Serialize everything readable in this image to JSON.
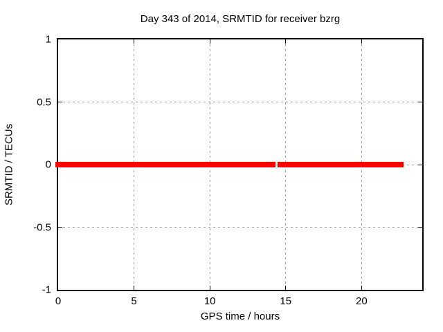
{
  "chart_data": {
    "type": "line",
    "title": "Day 343 of 2014, SRMTID for receiver bzrg",
    "xlabel": "GPS time / hours",
    "ylabel": "SRMTID / TECUs",
    "xlim": [
      0,
      24
    ],
    "ylim": [
      -1,
      1
    ],
    "xticks": [
      0,
      5,
      10,
      15,
      20
    ],
    "xtick_labels": [
      "0",
      "5",
      "10",
      "15",
      "20"
    ],
    "yticks": [
      1,
      0.5,
      0,
      -0.5,
      -1
    ],
    "ytick_labels": [
      "1",
      "0.5",
      "0",
      "-0.5",
      "-1"
    ],
    "grid": true,
    "grid_style": "dashed",
    "legend": "none",
    "series": [
      {
        "name": "SRMTID",
        "color": "#ff0000",
        "style": "thick-points-line",
        "segments": [
          {
            "x_start": 0,
            "x_end": 14.33,
            "y": 0
          },
          {
            "x_start": 14.45,
            "x_end": 22.76,
            "y": 0
          }
        ]
      }
    ],
    "colors": {
      "line": "#ff0000",
      "grid": "#9a9a9a",
      "border": "#000000",
      "background": "#ffffff",
      "text": "#000000"
    }
  }
}
